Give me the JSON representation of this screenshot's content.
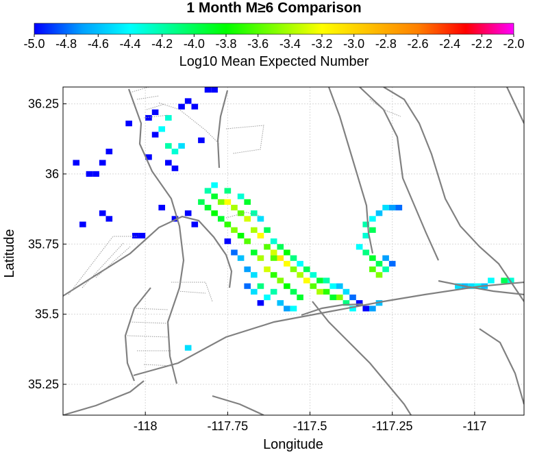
{
  "title": "1 Month M≥6 Comparison",
  "colorbar": {
    "label": "Log10 Mean Expected Number",
    "min": -5.0,
    "max": -2.0,
    "ticks": [
      "-5.0",
      "-4.8",
      "-4.6",
      "-4.4",
      "-4.2",
      "-4.0",
      "-3.8",
      "-3.6",
      "-3.4",
      "-3.2",
      "-3.0",
      "-2.8",
      "-2.6",
      "-2.4",
      "-2.2",
      "-2.0"
    ],
    "colors": [
      "#0000ff",
      "#00a0ff",
      "#00ffff",
      "#00ff80",
      "#00ff00",
      "#80ff00",
      "#ffff00",
      "#ffc000",
      "#ff8000",
      "#ff0000",
      "#ff00ff"
    ]
  },
  "axes": {
    "xlabel": "Longitude",
    "ylabel": "Latitude",
    "xlim": [
      -118.25,
      -116.85
    ],
    "ylim": [
      35.14,
      36.31
    ],
    "xticks": [
      "-118",
      "-117.75",
      "-117.5",
      "-117.25",
      "-117"
    ],
    "xtick_values": [
      -118,
      -117.75,
      -117.5,
      -117.25,
      -117
    ],
    "yticks": [
      "36.25",
      "36",
      "35.75",
      "35.5",
      "35.25"
    ],
    "ytick_values": [
      36.25,
      36.0,
      35.75,
      35.5,
      35.25
    ],
    "grid": "dotted"
  },
  "chart_data": {
    "type": "heatmap",
    "title": "1 Month M≥6 Comparison",
    "xlabel": "Longitude",
    "ylabel": "Latitude",
    "xlim": [
      -118.25,
      -116.85
    ],
    "ylim": [
      35.14,
      36.31
    ],
    "value_range": [
      -5.0,
      -2.0
    ],
    "cell_size_deg": 0.02,
    "cells": [
      {
        "lon": -118.05,
        "lat": 36.18,
        "v": -5.0
      },
      {
        "lon": -117.99,
        "lat": 36.2,
        "v": -5.0
      },
      {
        "lon": -117.97,
        "lat": 36.22,
        "v": -5.0
      },
      {
        "lon": -117.97,
        "lat": 36.14,
        "v": -5.0
      },
      {
        "lon": -117.95,
        "lat": 36.16,
        "v": -4.4
      },
      {
        "lon": -117.93,
        "lat": 36.2,
        "v": -4.3
      },
      {
        "lon": -117.93,
        "lat": 36.1,
        "v": -4.2
      },
      {
        "lon": -117.91,
        "lat": 36.08,
        "v": -4.3
      },
      {
        "lon": -117.89,
        "lat": 36.1,
        "v": -4.5
      },
      {
        "lon": -117.89,
        "lat": 36.24,
        "v": -5.0
      },
      {
        "lon": -117.87,
        "lat": 36.26,
        "v": -5.0
      },
      {
        "lon": -117.85,
        "lat": 36.24,
        "v": -5.0
      },
      {
        "lon": -117.83,
        "lat": 36.12,
        "v": -5.0
      },
      {
        "lon": -117.81,
        "lat": 36.3,
        "v": -5.0
      },
      {
        "lon": -117.79,
        "lat": 36.3,
        "v": -5.0
      },
      {
        "lon": -117.93,
        "lat": 36.04,
        "v": -5.0
      },
      {
        "lon": -117.91,
        "lat": 36.02,
        "v": -5.0
      },
      {
        "lon": -117.99,
        "lat": 36.06,
        "v": -5.0
      },
      {
        "lon": -118.17,
        "lat": 36.0,
        "v": -5.0
      },
      {
        "lon": -118.15,
        "lat": 36.0,
        "v": -5.0
      },
      {
        "lon": -118.13,
        "lat": 36.04,
        "v": -5.0
      },
      {
        "lon": -118.11,
        "lat": 36.08,
        "v": -5.0
      },
      {
        "lon": -118.21,
        "lat": 36.04,
        "v": -5.0
      },
      {
        "lon": -118.19,
        "lat": 35.82,
        "v": -5.0
      },
      {
        "lon": -118.13,
        "lat": 35.86,
        "v": -5.0
      },
      {
        "lon": -118.11,
        "lat": 35.84,
        "v": -5.0
      },
      {
        "lon": -118.01,
        "lat": 35.78,
        "v": -5.0
      },
      {
        "lon": -118.03,
        "lat": 35.78,
        "v": -5.0
      },
      {
        "lon": -117.95,
        "lat": 35.88,
        "v": -5.0
      },
      {
        "lon": -117.91,
        "lat": 35.84,
        "v": -5.0
      },
      {
        "lon": -117.87,
        "lat": 35.86,
        "v": -5.0
      },
      {
        "lon": -117.85,
        "lat": 35.82,
        "v": -5.0
      },
      {
        "lon": -117.81,
        "lat": 35.94,
        "v": -4.2
      },
      {
        "lon": -117.79,
        "lat": 35.92,
        "v": -3.9
      },
      {
        "lon": -117.77,
        "lat": 35.9,
        "v": -3.5
      },
      {
        "lon": -117.75,
        "lat": 35.9,
        "v": -3.2
      },
      {
        "lon": -117.73,
        "lat": 35.88,
        "v": -3.4
      },
      {
        "lon": -117.71,
        "lat": 35.86,
        "v": -3.6
      },
      {
        "lon": -117.69,
        "lat": 35.84,
        "v": -3.3
      },
      {
        "lon": -117.67,
        "lat": 35.8,
        "v": -3.4
      },
      {
        "lon": -117.65,
        "lat": 35.78,
        "v": -3.2
      },
      {
        "lon": -117.63,
        "lat": 35.74,
        "v": -3.6
      },
      {
        "lon": -117.61,
        "lat": 35.72,
        "v": -3.3
      },
      {
        "lon": -117.59,
        "lat": 35.7,
        "v": -3.1
      },
      {
        "lon": -117.57,
        "lat": 35.68,
        "v": -3.2
      },
      {
        "lon": -117.55,
        "lat": 35.66,
        "v": -3.5
      },
      {
        "lon": -117.53,
        "lat": 35.64,
        "v": -3.4
      },
      {
        "lon": -117.51,
        "lat": 35.62,
        "v": -3.2
      },
      {
        "lon": -117.49,
        "lat": 35.6,
        "v": -3.6
      },
      {
        "lon": -117.47,
        "lat": 35.58,
        "v": -3.4
      },
      {
        "lon": -117.45,
        "lat": 35.58,
        "v": -3.7
      },
      {
        "lon": -117.43,
        "lat": 35.56,
        "v": -3.9
      },
      {
        "lon": -117.41,
        "lat": 35.56,
        "v": -3.5
      },
      {
        "lon": -117.39,
        "lat": 35.54,
        "v": -4.1
      },
      {
        "lon": -117.37,
        "lat": 35.52,
        "v": -4.4
      },
      {
        "lon": -117.79,
        "lat": 35.86,
        "v": -3.8
      },
      {
        "lon": -117.77,
        "lat": 35.84,
        "v": -3.9
      },
      {
        "lon": -117.75,
        "lat": 35.82,
        "v": -3.7
      },
      {
        "lon": -117.73,
        "lat": 35.8,
        "v": -3.5
      },
      {
        "lon": -117.71,
        "lat": 35.78,
        "v": -3.8
      },
      {
        "lon": -117.69,
        "lat": 35.76,
        "v": -3.6
      },
      {
        "lon": -117.67,
        "lat": 35.72,
        "v": -3.9
      },
      {
        "lon": -117.65,
        "lat": 35.7,
        "v": -3.4
      },
      {
        "lon": -117.63,
        "lat": 35.66,
        "v": -3.3
      },
      {
        "lon": -117.61,
        "lat": 35.64,
        "v": -3.7
      },
      {
        "lon": -117.59,
        "lat": 35.62,
        "v": -3.5
      },
      {
        "lon": -117.57,
        "lat": 35.6,
        "v": -3.8
      },
      {
        "lon": -117.55,
        "lat": 35.58,
        "v": -4.0
      },
      {
        "lon": -117.53,
        "lat": 35.56,
        "v": -3.9
      },
      {
        "lon": -117.61,
        "lat": 35.58,
        "v": -4.2
      },
      {
        "lon": -117.63,
        "lat": 35.56,
        "v": -4.4
      },
      {
        "lon": -117.65,
        "lat": 35.6,
        "v": -4.1
      },
      {
        "lon": -117.83,
        "lat": 35.9,
        "v": -4.0
      },
      {
        "lon": -117.81,
        "lat": 35.88,
        "v": -3.9
      },
      {
        "lon": -117.79,
        "lat": 35.96,
        "v": -4.4
      },
      {
        "lon": -117.75,
        "lat": 35.94,
        "v": -4.1
      },
      {
        "lon": -117.71,
        "lat": 35.92,
        "v": -4.3
      },
      {
        "lon": -117.69,
        "lat": 35.9,
        "v": -3.9
      },
      {
        "lon": -117.67,
        "lat": 35.86,
        "v": -4.2
      },
      {
        "lon": -117.65,
        "lat": 35.84,
        "v": -4.5
      },
      {
        "lon": -117.63,
        "lat": 35.8,
        "v": -4.0
      },
      {
        "lon": -117.61,
        "lat": 35.76,
        "v": -4.3
      },
      {
        "lon": -117.59,
        "lat": 35.74,
        "v": -4.0
      },
      {
        "lon": -117.57,
        "lat": 35.72,
        "v": -3.8
      },
      {
        "lon": -117.55,
        "lat": 35.7,
        "v": -4.1
      },
      {
        "lon": -117.53,
        "lat": 35.68,
        "v": -4.4
      },
      {
        "lon": -117.51,
        "lat": 35.66,
        "v": -4.0
      },
      {
        "lon": -117.49,
        "lat": 35.64,
        "v": -4.3
      },
      {
        "lon": -117.47,
        "lat": 35.62,
        "v": -3.9
      },
      {
        "lon": -117.45,
        "lat": 35.62,
        "v": -4.2
      },
      {
        "lon": -117.43,
        "lat": 35.6,
        "v": -4.4
      },
      {
        "lon": -117.41,
        "lat": 35.6,
        "v": -4.6
      },
      {
        "lon": -117.39,
        "lat": 35.58,
        "v": -4.5
      },
      {
        "lon": -117.37,
        "lat": 35.56,
        "v": -4.8
      },
      {
        "lon": -117.35,
        "lat": 35.54,
        "v": -5.0
      },
      {
        "lon": -117.33,
        "lat": 35.52,
        "v": -5.0
      },
      {
        "lon": -117.31,
        "lat": 35.52,
        "v": -4.7
      },
      {
        "lon": -117.29,
        "lat": 35.54,
        "v": -4.6
      },
      {
        "lon": -117.71,
        "lat": 35.7,
        "v": -4.6
      },
      {
        "lon": -117.73,
        "lat": 35.72,
        "v": -4.8
      },
      {
        "lon": -117.75,
        "lat": 35.76,
        "v": -5.0
      },
      {
        "lon": -117.69,
        "lat": 35.66,
        "v": -4.7
      },
      {
        "lon": -117.67,
        "lat": 35.64,
        "v": -4.5
      },
      {
        "lon": -117.69,
        "lat": 35.6,
        "v": -4.8
      },
      {
        "lon": -117.67,
        "lat": 35.58,
        "v": -4.5
      },
      {
        "lon": -117.65,
        "lat": 35.54,
        "v": -5.0
      },
      {
        "lon": -117.59,
        "lat": 35.54,
        "v": -4.6
      },
      {
        "lon": -117.57,
        "lat": 35.52,
        "v": -4.7
      },
      {
        "lon": -117.55,
        "lat": 35.52,
        "v": -4.4
      },
      {
        "lon": -117.35,
        "lat": 35.74,
        "v": -4.4
      },
      {
        "lon": -117.33,
        "lat": 35.72,
        "v": -4.1
      },
      {
        "lon": -117.31,
        "lat": 35.7,
        "v": -3.9
      },
      {
        "lon": -117.29,
        "lat": 35.68,
        "v": -4.0
      },
      {
        "lon": -117.31,
        "lat": 35.66,
        "v": -3.6
      },
      {
        "lon": -117.29,
        "lat": 35.64,
        "v": -3.5
      },
      {
        "lon": -117.27,
        "lat": 35.66,
        "v": -4.2
      },
      {
        "lon": -117.33,
        "lat": 35.78,
        "v": -4.3
      },
      {
        "lon": -117.31,
        "lat": 35.8,
        "v": -4.0
      },
      {
        "lon": -117.33,
        "lat": 35.82,
        "v": -4.2
      },
      {
        "lon": -117.31,
        "lat": 35.84,
        "v": -4.4
      },
      {
        "lon": -117.29,
        "lat": 35.86,
        "v": -4.6
      },
      {
        "lon": -117.27,
        "lat": 35.88,
        "v": -4.5
      },
      {
        "lon": -117.25,
        "lat": 35.88,
        "v": -4.7
      },
      {
        "lon": -117.23,
        "lat": 35.88,
        "v": -4.8
      },
      {
        "lon": -117.27,
        "lat": 35.7,
        "v": -4.7
      },
      {
        "lon": -117.25,
        "lat": 35.68,
        "v": -4.8
      },
      {
        "lon": -117.05,
        "lat": 35.6,
        "v": -4.5
      },
      {
        "lon": -117.03,
        "lat": 35.6,
        "v": -4.6
      },
      {
        "lon": -117.01,
        "lat": 35.6,
        "v": -4.5
      },
      {
        "lon": -116.99,
        "lat": 35.6,
        "v": -4.4
      },
      {
        "lon": -116.97,
        "lat": 35.6,
        "v": -4.6
      },
      {
        "lon": -116.95,
        "lat": 35.62,
        "v": -4.4
      },
      {
        "lon": -116.91,
        "lat": 35.62,
        "v": -4.0
      },
      {
        "lon": -116.89,
        "lat": 35.62,
        "v": -4.3
      },
      {
        "lon": -117.87,
        "lat": 35.38,
        "v": -4.5
      },
      {
        "lon": -117.61,
        "lat": 35.7,
        "v": -3.6
      }
    ]
  }
}
